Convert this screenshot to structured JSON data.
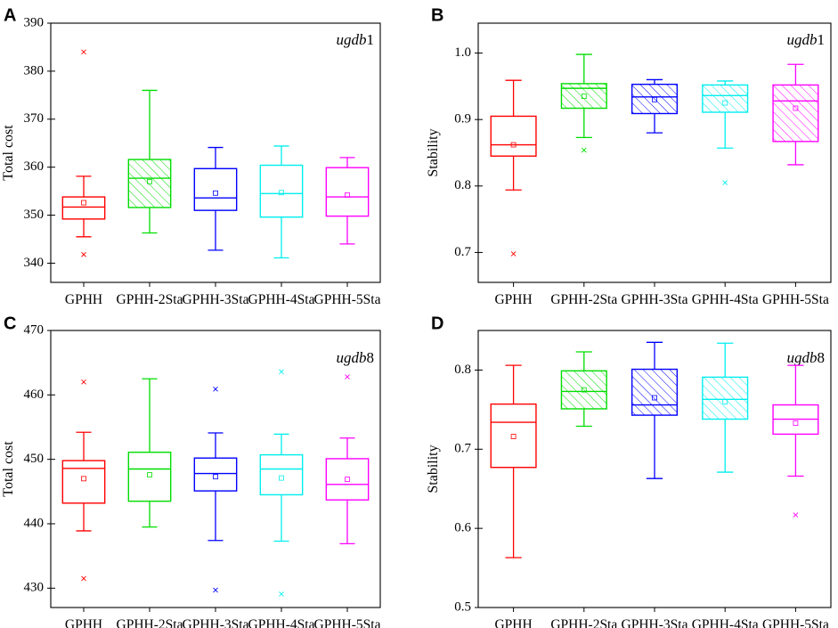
{
  "chart_data": [
    {
      "panel": "A",
      "type": "box",
      "title": "",
      "annotation_italic": "ugdb",
      "annotation_num": "1",
      "xlabel": "",
      "ylabel": "Total cost",
      "ylim": [
        336,
        390
      ],
      "yticks": [
        340,
        350,
        360,
        370,
        380,
        390
      ],
      "categories": [
        "GPHH",
        "GPHH-2Sta",
        "GPHH-3Sta",
        "GPHH-4Sta",
        "GPHH-5Sta"
      ],
      "series": [
        {
          "name": "GPHH",
          "color": "#ff0000",
          "hatch": false,
          "whisker_low": 345.5,
          "q1": 349.2,
          "median": 351.7,
          "q3": 353.8,
          "whisker_high": 358.1,
          "mean": 352.6,
          "outliers": [
            384.0,
            341.8
          ]
        },
        {
          "name": "GPHH-2Sta",
          "color": "#00dd00",
          "hatch": true,
          "whisker_low": 346.3,
          "q1": 351.6,
          "median": 357.7,
          "q3": 361.6,
          "whisker_high": 376.0,
          "mean": 357.0,
          "outliers": []
        },
        {
          "name": "GPHH-3Sta",
          "color": "#0000ff",
          "hatch": false,
          "whisker_low": 342.7,
          "q1": 351.0,
          "median": 353.6,
          "q3": 359.7,
          "whisker_high": 364.1,
          "mean": 354.6,
          "outliers": []
        },
        {
          "name": "GPHH-4Sta",
          "color": "#00eeee",
          "hatch": false,
          "whisker_low": 341.1,
          "q1": 349.6,
          "median": 354.5,
          "q3": 360.4,
          "whisker_high": 364.4,
          "mean": 354.7,
          "outliers": []
        },
        {
          "name": "GPHH-5Sta",
          "color": "#ff00ff",
          "hatch": false,
          "whisker_low": 344.0,
          "q1": 349.8,
          "median": 353.8,
          "q3": 359.9,
          "whisker_high": 362.0,
          "mean": 354.2,
          "outliers": []
        }
      ]
    },
    {
      "panel": "B",
      "type": "box",
      "title": "",
      "annotation_italic": "ugdb",
      "annotation_num": "1",
      "xlabel": "",
      "ylabel": "Stability",
      "ylim": [
        0.655,
        1.045
      ],
      "yticks": [
        "0.7",
        "0.8",
        "0.9",
        "1.0"
      ],
      "categories": [
        "GPHH",
        "GPHH-2Sta",
        "GPHH-3Sta",
        "GPHH-4Sta",
        "GPHH-5Sta"
      ],
      "series": [
        {
          "name": "GPHH",
          "color": "#ff0000",
          "hatch": false,
          "whisker_low": 0.794,
          "q1": 0.845,
          "median": 0.862,
          "q3": 0.905,
          "whisker_high": 0.959,
          "mean": 0.862,
          "outliers": [
            0.698
          ]
        },
        {
          "name": "GPHH-2Sta",
          "color": "#00dd00",
          "hatch": true,
          "whisker_low": 0.873,
          "q1": 0.917,
          "median": 0.947,
          "q3": 0.954,
          "whisker_high": 0.998,
          "mean": 0.935,
          "outliers": [
            0.854
          ]
        },
        {
          "name": "GPHH-3Sta",
          "color": "#0000ff",
          "hatch": true,
          "whisker_low": 0.88,
          "q1": 0.909,
          "median": 0.934,
          "q3": 0.953,
          "whisker_high": 0.96,
          "mean": 0.93,
          "outliers": []
        },
        {
          "name": "GPHH-4Sta",
          "color": "#00eeee",
          "hatch": true,
          "whisker_low": 0.857,
          "q1": 0.911,
          "median": 0.936,
          "q3": 0.952,
          "whisker_high": 0.958,
          "mean": 0.925,
          "outliers": [
            0.805
          ]
        },
        {
          "name": "GPHH-5Sta",
          "color": "#ff00ff",
          "hatch": true,
          "whisker_low": 0.832,
          "q1": 0.867,
          "median": 0.928,
          "q3": 0.952,
          "whisker_high": 0.983,
          "mean": 0.917,
          "outliers": []
        }
      ]
    },
    {
      "panel": "C",
      "type": "box",
      "title": "",
      "annotation_italic": "ugdb",
      "annotation_num": "8",
      "xlabel": "",
      "ylabel": "Total cost",
      "ylim": [
        427,
        470
      ],
      "yticks": [
        430,
        440,
        450,
        460,
        470
      ],
      "categories": [
        "GPHH",
        "GPHH-2Sta",
        "GPHH-3Sta",
        "GPHH-4Sta",
        "GPHH-5Sta"
      ],
      "series": [
        {
          "name": "GPHH",
          "color": "#ff0000",
          "hatch": false,
          "whisker_low": 438.9,
          "q1": 443.2,
          "median": 448.6,
          "q3": 449.8,
          "whisker_high": 454.2,
          "mean": 447.0,
          "outliers": [
            462.0,
            431.5
          ]
        },
        {
          "name": "GPHH-2Sta",
          "color": "#00dd00",
          "hatch": false,
          "whisker_low": 439.5,
          "q1": 443.5,
          "median": 448.5,
          "q3": 451.1,
          "whisker_high": 462.5,
          "mean": 447.6,
          "outliers": []
        },
        {
          "name": "GPHH-3Sta",
          "color": "#0000ff",
          "hatch": false,
          "whisker_low": 437.4,
          "q1": 445.1,
          "median": 447.8,
          "q3": 450.2,
          "whisker_high": 454.1,
          "mean": 447.3,
          "outliers": [
            460.9,
            429.7
          ]
        },
        {
          "name": "GPHH-4Sta",
          "color": "#00eeee",
          "hatch": false,
          "whisker_low": 437.3,
          "q1": 444.5,
          "median": 448.5,
          "q3": 450.7,
          "whisker_high": 453.9,
          "mean": 447.1,
          "outliers": [
            463.6,
            429.1
          ]
        },
        {
          "name": "GPHH-5Sta",
          "color": "#ff00ff",
          "hatch": false,
          "whisker_low": 436.9,
          "q1": 443.7,
          "median": 446.1,
          "q3": 450.1,
          "whisker_high": 453.3,
          "mean": 446.9,
          "outliers": [
            462.8
          ]
        }
      ]
    },
    {
      "panel": "D",
      "type": "box",
      "title": "",
      "annotation_italic": "ugdb",
      "annotation_num": "8",
      "xlabel": "",
      "ylabel": "Stability",
      "ylim": [
        0.5,
        0.85
      ],
      "yticks": [
        "0.5",
        "0.6",
        "0.7",
        "0.8"
      ],
      "categories": [
        "GPHH",
        "GPHH-2Sta",
        "GPHH-3Sta",
        "GPHH-4Sta",
        "GPHH-5Sta"
      ],
      "series": [
        {
          "name": "GPHH",
          "color": "#ff0000",
          "hatch": false,
          "whisker_low": 0.563,
          "q1": 0.677,
          "median": 0.734,
          "q3": 0.757,
          "whisker_high": 0.806,
          "mean": 0.716,
          "outliers": []
        },
        {
          "name": "GPHH-2Sta",
          "color": "#00dd00",
          "hatch": true,
          "whisker_low": 0.729,
          "q1": 0.751,
          "median": 0.773,
          "q3": 0.799,
          "whisker_high": 0.823,
          "mean": 0.775,
          "outliers": []
        },
        {
          "name": "GPHH-3Sta",
          "color": "#0000ff",
          "hatch": true,
          "whisker_low": 0.663,
          "q1": 0.743,
          "median": 0.756,
          "q3": 0.801,
          "whisker_high": 0.835,
          "mean": 0.765,
          "outliers": []
        },
        {
          "name": "GPHH-4Sta",
          "color": "#00eeee",
          "hatch": true,
          "whisker_low": 0.671,
          "q1": 0.738,
          "median": 0.763,
          "q3": 0.791,
          "whisker_high": 0.834,
          "mean": 0.76,
          "outliers": []
        },
        {
          "name": "GPHH-5Sta",
          "color": "#ff00ff",
          "hatch": false,
          "whisker_low": 0.666,
          "q1": 0.719,
          "median": 0.738,
          "q3": 0.756,
          "whisker_high": 0.806,
          "mean": 0.733,
          "outliers": [
            0.617
          ]
        }
      ]
    }
  ]
}
